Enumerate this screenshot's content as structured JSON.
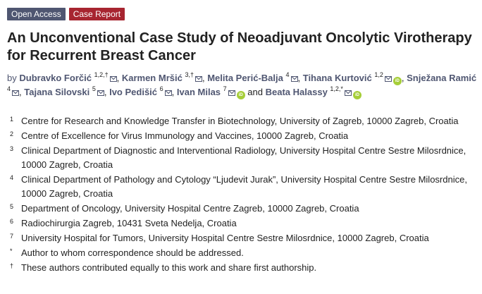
{
  "badges": {
    "open_access": "Open Access",
    "case_report": "Case Report"
  },
  "title": "An Unconventional Case Study of Neoadjuvant Oncolytic Virotherapy for Recurrent Breast Cancer",
  "authors": {
    "by": "by",
    "conjunction": "and",
    "list": [
      {
        "name": "Dubravko Forčić",
        "sup": "1,2,†",
        "email": true,
        "orcid": false
      },
      {
        "name": "Karmen Mršić",
        "sup": "3,†",
        "email": true,
        "orcid": false
      },
      {
        "name": "Melita Perić-Balja",
        "sup": "4",
        "email": true,
        "orcid": false
      },
      {
        "name": "Tihana Kurtović",
        "sup": "1,2",
        "email": true,
        "orcid": true
      },
      {
        "name": "Snježana Ramić",
        "sup": "4",
        "email": true,
        "orcid": false
      },
      {
        "name": "Tajana Silovski",
        "sup": "5",
        "email": true,
        "orcid": false
      },
      {
        "name": "Ivo Pedišić",
        "sup": "6",
        "email": true,
        "orcid": false
      },
      {
        "name": "Ivan Milas",
        "sup": "7",
        "email": true,
        "orcid": true
      },
      {
        "name": "Beata Halassy",
        "sup": "1,2,*",
        "email": true,
        "orcid": true
      }
    ],
    "icons": {
      "email": "envelope-icon",
      "orcid": "orcid-icon"
    }
  },
  "affiliations": [
    {
      "num": "1",
      "text": "Centre for Research and Knowledge Transfer in Biotechnology, University of Zagreb, 10000 Zagreb, Croatia"
    },
    {
      "num": "2",
      "text": "Centre of Excellence for Virus Immunology and Vaccines, 10000 Zagreb, Croatia"
    },
    {
      "num": "3",
      "text": "Clinical Department of Diagnostic and Interventional Radiology, University Hospital Centre Sestre Milosrdnice, 10000 Zagreb, Croatia"
    },
    {
      "num": "4",
      "text": "Clinical Department of Pathology and Cytology “Ljudevit Jurak”, University Hospital Centre Sestre Milosrdnice, 10000 Zagreb, Croatia"
    },
    {
      "num": "5",
      "text": "Department of Oncology, University Hospital Centre Zagreb, 10000 Zagreb, Croatia"
    },
    {
      "num": "6",
      "text": "Radiochirurgia Zagreb, 10431 Sveta Nedelja, Croatia"
    },
    {
      "num": "7",
      "text": "University Hospital for Tumors, University Hospital Centre Sestre Milosrdnice, 10000 Zagreb, Croatia"
    },
    {
      "num": "*",
      "text": "Author to whom correspondence should be addressed."
    },
    {
      "num": "†",
      "text": "These authors contributed equally to this work and share first authorship."
    }
  ],
  "colors": {
    "open_access_badge": "#4f5671",
    "case_report_badge": "#a72530",
    "author_link": "#4f5671",
    "orcid": "#a6ce39"
  }
}
